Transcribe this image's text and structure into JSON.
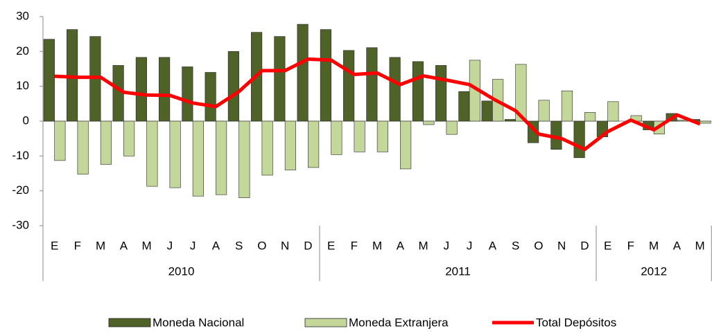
{
  "chart_data": {
    "type": "bar",
    "category_groups": [
      {
        "label": "2010",
        "categories": [
          "E",
          "F",
          "M",
          "A",
          "M",
          "J",
          "J",
          "A",
          "S",
          "O",
          "N",
          "D"
        ]
      },
      {
        "label": "2011",
        "categories": [
          "E",
          "F",
          "M",
          "A",
          "M",
          "J",
          "J",
          "A",
          "S",
          "O",
          "N",
          "D"
        ]
      },
      {
        "label": "2012",
        "categories": [
          "E",
          "F",
          "M",
          "A",
          "M"
        ]
      }
    ],
    "series": [
      {
        "name": "Moneda Nacional",
        "type": "bar",
        "color": "#4f6228",
        "values": [
          23.5,
          26.3,
          24.3,
          16,
          18.3,
          18.3,
          15.6,
          14,
          20,
          25.5,
          24.3,
          27.8,
          26.3,
          20.3,
          21.1,
          18.3,
          17.1,
          16,
          8.5,
          5.8,
          0.5,
          -6.2,
          -8.1,
          -10.5,
          -4.5,
          0,
          -2.5,
          2.2,
          0.5
        ]
      },
      {
        "name": "Moneda Extranjera",
        "type": "bar",
        "color": "#c4d79b",
        "values": [
          -11.3,
          -15.2,
          -12.4,
          -10,
          -18.7,
          -19.1,
          -21.5,
          -21.1,
          -22,
          -15.5,
          -14,
          -13.3,
          -9.6,
          -8.8,
          -8.8,
          -13.7,
          -1,
          -3.8,
          17.5,
          12,
          16.3,
          6,
          8.7,
          2.5,
          5.6,
          1.6,
          -3.7,
          0.3,
          -0.6
        ]
      },
      {
        "name": "Total Depósitos",
        "type": "line",
        "color": "#ff0000",
        "values": [
          12.9,
          12.6,
          12.6,
          8.3,
          7.5,
          7.4,
          5.2,
          4.2,
          8.5,
          14.5,
          14.5,
          17.8,
          17.5,
          13.4,
          13.8,
          10.5,
          13,
          11.8,
          10.5,
          6.5,
          3,
          -3.7,
          -5,
          -8.1,
          -3,
          0.3,
          -2.5,
          1.8,
          -0.8
        ]
      }
    ],
    "ylim": [
      -30,
      30
    ],
    "yticks": [
      -30,
      -20,
      -10,
      0,
      10,
      20,
      30
    ],
    "grid": false
  }
}
